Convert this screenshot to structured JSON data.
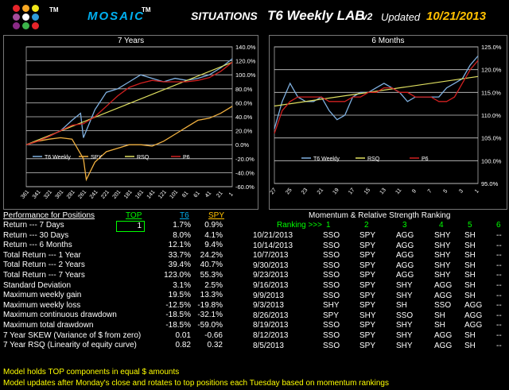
{
  "header": {
    "tm1": "TM",
    "brand": "MOSAIC",
    "tm2": "TM",
    "situations": "SITUATIONS",
    "lab_title": "T6 Weekly LAB",
    "version": "v2",
    "updated_label": "Updated",
    "updated_date": "10/21/2013",
    "logo_colors": [
      "#e6242a",
      "#f7a823",
      "#f1e71a",
      "#a64b9a",
      "#ffffff",
      "#2e9cd8",
      "#8a2a86",
      "#3cb44a",
      "#e6242a"
    ]
  },
  "chart7": {
    "title": "7 Years",
    "x_ticks": [
      "361",
      "341",
      "321",
      "301",
      "281",
      "261",
      "241",
      "221",
      "201",
      "181",
      "161",
      "141",
      "121",
      "101",
      "81",
      "61",
      "41",
      "21",
      "1"
    ],
    "y_ticks": [
      "140.0%",
      "120.0%",
      "100.0%",
      "80.0%",
      "60.0%",
      "40.0%",
      "20.0%",
      "0.0%",
      "-20.0%",
      "-40.0%",
      "-60.0%"
    ],
    "legend": [
      "T6 Weekly",
      "SPY",
      "RSQ",
      "P6"
    ]
  },
  "chart6": {
    "title": "6 Months",
    "x_ticks": [
      "27",
      "25",
      "23",
      "21",
      "19",
      "17",
      "15",
      "13",
      "11",
      "9",
      "7",
      "5",
      "3",
      "1"
    ],
    "y_ticks": [
      "125.0%",
      "120.0%",
      "115.0%",
      "110.0%",
      "105.0%",
      "100.0%",
      "95.0%"
    ],
    "legend": [
      "T6 Weekly",
      "RSQ",
      "P6"
    ]
  },
  "chart_data": [
    {
      "type": "line",
      "title": "7 Years",
      "x_direction": "descending",
      "ylim": [
        -60,
        140
      ],
      "series": [
        {
          "name": "T6 Weekly",
          "color": "#7fb0e0",
          "x": [
            361,
            341,
            321,
            301,
            281,
            266,
            261,
            241,
            221,
            201,
            181,
            161,
            141,
            121,
            101,
            81,
            61,
            41,
            21,
            1
          ],
          "y": [
            0,
            5,
            12,
            20,
            35,
            45,
            10,
            50,
            75,
            80,
            90,
            100,
            95,
            90,
            95,
            92,
            95,
            100,
            110,
            123
          ]
        },
        {
          "name": "SPY",
          "color": "#f0b040",
          "x": [
            361,
            341,
            321,
            301,
            281,
            261,
            256,
            241,
            221,
            201,
            181,
            161,
            141,
            121,
            101,
            81,
            61,
            41,
            21,
            1
          ],
          "y": [
            0,
            5,
            8,
            10,
            8,
            -20,
            -50,
            -25,
            -10,
            -5,
            0,
            0,
            -2,
            5,
            15,
            25,
            35,
            38,
            45,
            55
          ]
        },
        {
          "name": "RSQ",
          "color": "#e0e060",
          "x": [
            361,
            1
          ],
          "y": [
            0,
            118
          ]
        },
        {
          "name": "P6",
          "color": "#d02020",
          "x": [
            361,
            341,
            321,
            301,
            281,
            261,
            241,
            221,
            201,
            181,
            161,
            141,
            121,
            101,
            81,
            61,
            41,
            21,
            1
          ],
          "y": [
            0,
            5,
            12,
            20,
            28,
            30,
            40,
            55,
            70,
            82,
            88,
            92,
            90,
            90,
            90,
            92,
            96,
            105,
            118
          ]
        }
      ]
    },
    {
      "type": "line",
      "title": "6 Months",
      "x_direction": "descending",
      "ylim": [
        95,
        125
      ],
      "series": [
        {
          "name": "T6 Weekly",
          "color": "#7fb0e0",
          "x": [
            27,
            26,
            25,
            24,
            23,
            22,
            21,
            20,
            19,
            18,
            17,
            16,
            15,
            14,
            13,
            12,
            11,
            10,
            9,
            8,
            7,
            6,
            5,
            4,
            3,
            2,
            1
          ],
          "y": [
            107,
            113,
            117,
            114,
            113,
            113,
            114,
            111,
            109,
            110,
            114,
            115,
            115,
            116,
            117,
            116,
            115,
            113,
            114,
            114,
            114,
            114,
            116,
            117,
            118,
            121,
            123
          ]
        },
        {
          "name": "RSQ",
          "color": "#e0e060",
          "x": [
            27,
            1
          ],
          "y": [
            112,
            118.5
          ]
        },
        {
          "name": "P6",
          "color": "#d02020",
          "x": [
            27,
            26,
            25,
            24,
            23,
            22,
            21,
            20,
            19,
            18,
            17,
            16,
            15,
            14,
            13,
            12,
            11,
            10,
            9,
            8,
            7,
            6,
            5,
            4,
            3,
            2,
            1
          ],
          "y": [
            106,
            111,
            113,
            114,
            114,
            114,
            114,
            113,
            113,
            113,
            114,
            114,
            115,
            115,
            116,
            116,
            115,
            115,
            114,
            114,
            114,
            113,
            113,
            114,
            117,
            120,
            122
          ]
        }
      ]
    }
  ],
  "performance": {
    "title": "Performance for Positions",
    "col_top": "TOP",
    "col_t6": "T6",
    "col_spy": "SPY",
    "top_value": "1",
    "rows": [
      {
        "label": "Return --- 7 Days",
        "t6": "1.7%",
        "spy": "0.9%"
      },
      {
        "label": "Return --- 30 Days",
        "t6": "8.0%",
        "spy": "4.1%"
      },
      {
        "label": "Return --- 6 Months",
        "t6": "12.1%",
        "spy": "9.4%"
      },
      {
        "label": "Total Return --- 1 Year",
        "t6": "33.7%",
        "spy": "24.2%"
      },
      {
        "label": "Total Return --- 2 Years",
        "t6": "39.4%",
        "spy": "40.7%"
      },
      {
        "label": "Total Return --- 7 Years",
        "t6": "123.0%",
        "spy": "55.3%"
      },
      {
        "label": "Standard Deviation",
        "t6": "3.1%",
        "spy": "2.5%"
      },
      {
        "label": "Maximum weekly gain",
        "t6": "19.5%",
        "spy": "13.3%"
      },
      {
        "label": "Maximum weekly loss",
        "t6": "-12.5%",
        "spy": "-19.8%"
      },
      {
        "label": "Maximum continuous drawdown",
        "t6": "-18.5%",
        "spy": "-32.1%"
      },
      {
        "label": "Maximum total drawdown",
        "t6": "-18.5%",
        "spy": "-59.0%"
      },
      {
        "label": "7 Year SKEW (Variance of $ from zero)",
        "t6": "0.01",
        "spy": "-0.66"
      },
      {
        "label": "7 Year RSQ (Linearity of equity curve)",
        "t6": "0.82",
        "spy": "0.32"
      }
    ]
  },
  "momentum": {
    "title": "Momentum & Relative Strength Ranking",
    "ranking_label": "Ranking >>>",
    "cols": [
      "1",
      "2",
      "3",
      "4",
      "5",
      "6"
    ],
    "rows": [
      {
        "date": "10/21/2013",
        "r": [
          "SSO",
          "SPY",
          "AGG",
          "SHY",
          "SH",
          "--"
        ]
      },
      {
        "date": "10/14/2013",
        "r": [
          "SSO",
          "SPY",
          "AGG",
          "SHY",
          "SH",
          "--"
        ]
      },
      {
        "date": "10/7/2013",
        "r": [
          "SSO",
          "SPY",
          "AGG",
          "SHY",
          "SH",
          "--"
        ]
      },
      {
        "date": "9/30/2013",
        "r": [
          "SSO",
          "SPY",
          "AGG",
          "SHY",
          "SH",
          "--"
        ]
      },
      {
        "date": "9/23/2013",
        "r": [
          "SSO",
          "SPY",
          "AGG",
          "SHY",
          "SH",
          "--"
        ]
      },
      {
        "date": "9/16/2013",
        "r": [
          "SSO",
          "SPY",
          "SHY",
          "AGG",
          "SH",
          "--"
        ]
      },
      {
        "date": "9/9/2013",
        "r": [
          "SSO",
          "SPY",
          "SHY",
          "AGG",
          "SH",
          "--"
        ]
      },
      {
        "date": "9/3/2013",
        "r": [
          "SHY",
          "SPY",
          "SH",
          "SSO",
          "AGG",
          "--"
        ]
      },
      {
        "date": "8/26/2013",
        "r": [
          "SPY",
          "SHY",
          "SSO",
          "SH",
          "AGG",
          "--"
        ]
      },
      {
        "date": "8/19/2013",
        "r": [
          "SSO",
          "SPY",
          "SHY",
          "SH",
          "AGG",
          "--"
        ]
      },
      {
        "date": "8/12/2013",
        "r": [
          "SSO",
          "SPY",
          "SHY",
          "AGG",
          "SH",
          "--"
        ]
      },
      {
        "date": "8/5/2013",
        "r": [
          "SSO",
          "SPY",
          "SHY",
          "AGG",
          "SH",
          "--"
        ]
      }
    ]
  },
  "footer": {
    "line1": "Model holds  TOP components in equal  $ amounts",
    "line2": "Model updates after Monday's close and rotates to top positions each Tuesday based on momentum rankings"
  }
}
